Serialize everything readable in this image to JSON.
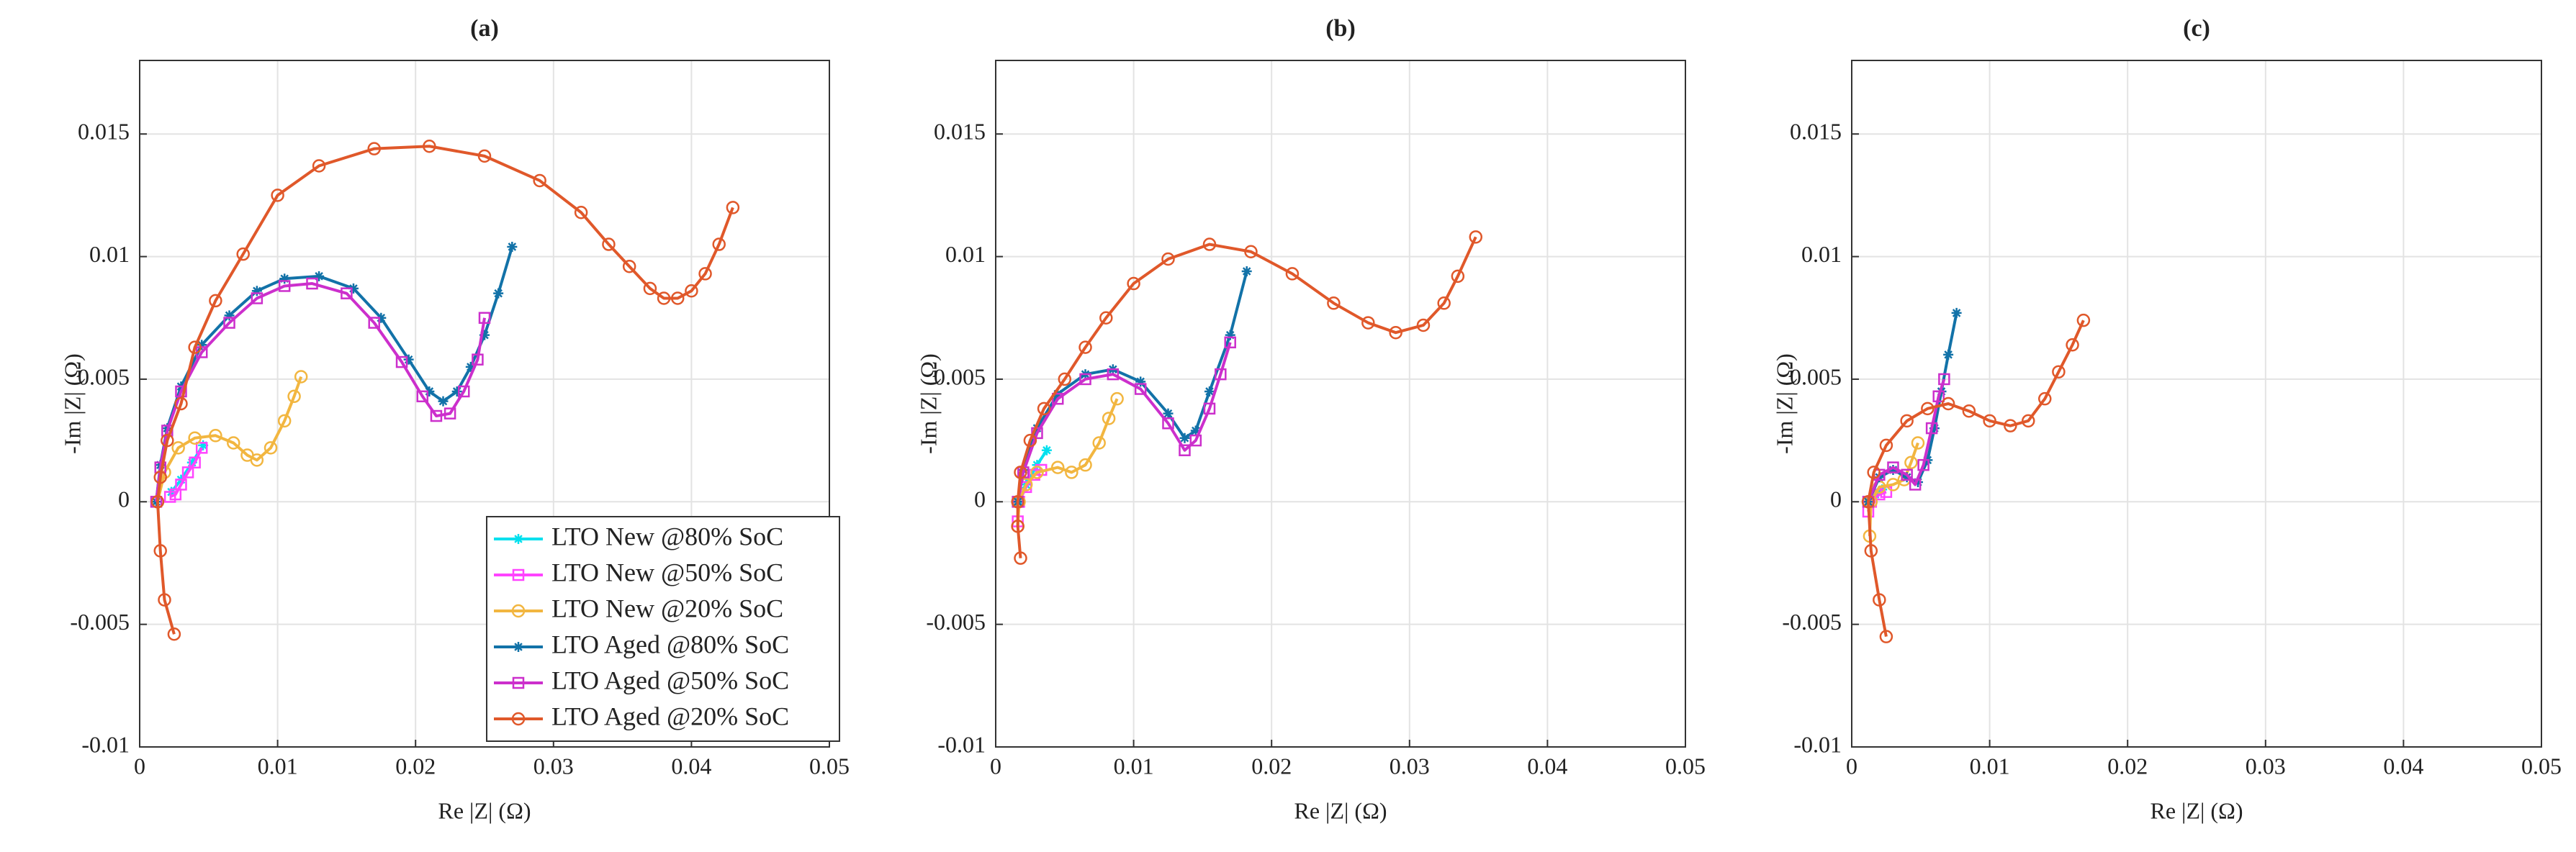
{
  "chart_data": [
    {
      "type": "line",
      "title": "(a)",
      "x_label": "Re |Z| (Ω)",
      "y_label": "-Im |Z| (Ω)",
      "xlim": [
        0,
        0.05
      ],
      "ylim": [
        -0.01,
        0.018
      ],
      "xticks": [
        0,
        0.01,
        0.02,
        0.03,
        0.04,
        0.05
      ],
      "yticks": [
        -0.01,
        -0.005,
        0,
        0.005,
        0.01,
        0.015
      ],
      "grid": true,
      "legend": "lower right",
      "series": [
        {
          "name": "LTO New @80% SoC",
          "color": "#00e0ee",
          "marker": "*",
          "x": [
            0.0023,
            0.003,
            0.0038,
            0.0046
          ],
          "values": [
            0.0004,
            0.0009,
            0.0016,
            0.0023
          ]
        },
        {
          "name": "LTO New @50% SoC",
          "color": "#ff44ff",
          "marker": "s",
          "x": [
            0.0022,
            0.0026,
            0.003,
            0.0035,
            0.004,
            0.0045
          ],
          "values": [
            0.0002,
            0.0003,
            0.0007,
            0.0012,
            0.0016,
            0.0022
          ]
        },
        {
          "name": "LTO New @20% SoC",
          "color": "#f2b640",
          "marker": "o",
          "x": [
            0.0013,
            0.0018,
            0.0028,
            0.004,
            0.0055,
            0.0068,
            0.0078,
            0.0085,
            0.0095,
            0.0105,
            0.0112,
            0.0117
          ],
          "values": [
            0,
            0.0012,
            0.0022,
            0.0026,
            0.0027,
            0.0024,
            0.0019,
            0.0017,
            0.0022,
            0.0033,
            0.0043,
            0.0051
          ]
        },
        {
          "name": "LTO Aged @80% SoC",
          "color": "#1272a8",
          "marker": "*",
          "x": [
            0.0012,
            0.0015,
            0.002,
            0.003,
            0.0045,
            0.0065,
            0.0085,
            0.0105,
            0.013,
            0.0155,
            0.0175,
            0.0195,
            0.021,
            0.022,
            0.023,
            0.024,
            0.025,
            0.026,
            0.027
          ],
          "values": [
            0,
            0.0015,
            0.003,
            0.0047,
            0.0064,
            0.0076,
            0.0086,
            0.0091,
            0.0092,
            0.0087,
            0.0075,
            0.0058,
            0.0045,
            0.0041,
            0.0045,
            0.0055,
            0.0068,
            0.0085,
            0.0104
          ]
        },
        {
          "name": "LTO Aged @50% SoC",
          "color": "#cc2fcc",
          "marker": "s",
          "x": [
            0.0012,
            0.0015,
            0.002,
            0.003,
            0.0045,
            0.0065,
            0.0085,
            0.0105,
            0.0125,
            0.015,
            0.017,
            0.019,
            0.0205,
            0.0215,
            0.0225,
            0.0235,
            0.0245,
            0.025
          ],
          "values": [
            0,
            0.0014,
            0.0029,
            0.0045,
            0.0061,
            0.0073,
            0.0083,
            0.0088,
            0.0089,
            0.0085,
            0.0073,
            0.0057,
            0.0043,
            0.0035,
            0.0036,
            0.0045,
            0.0058,
            0.0075
          ]
        },
        {
          "name": "LTO Aged @20% SoC",
          "color": "#e0582a",
          "marker": "o",
          "x": [
            0.0025,
            0.0018,
            0.0015,
            0.0013,
            0.0015,
            0.002,
            0.003,
            0.004,
            0.0055,
            0.0075,
            0.01,
            0.013,
            0.017,
            0.021,
            0.025,
            0.029,
            0.032,
            0.034,
            0.0355,
            0.037,
            0.038,
            0.039,
            0.04,
            0.041,
            0.042,
            0.043
          ],
          "values": [
            -0.0054,
            -0.004,
            -0.002,
            0,
            0.001,
            0.0025,
            0.004,
            0.0063,
            0.0082,
            0.0101,
            0.0125,
            0.0137,
            0.0144,
            0.0145,
            0.0141,
            0.0131,
            0.0118,
            0.0105,
            0.0096,
            0.0087,
            0.0083,
            0.0083,
            0.0086,
            0.0093,
            0.0105,
            0.012
          ]
        }
      ]
    },
    {
      "type": "line",
      "title": "(b)",
      "x_label": "Re |Z| (Ω)",
      "y_label": "-Im |Z| (Ω)",
      "xlim": [
        0,
        0.05
      ],
      "ylim": [
        -0.01,
        0.018
      ],
      "xticks": [
        0,
        0.01,
        0.02,
        0.03,
        0.04,
        0.05
      ],
      "yticks": [
        -0.01,
        -0.005,
        0,
        0.005,
        0.01,
        0.015
      ],
      "grid": true,
      "series": [
        {
          "color": "#00e0ee",
          "marker": "*",
          "x": [
            0.0017,
            0.0022,
            0.003,
            0.0037
          ],
          "values": [
            0,
            0.0007,
            0.0015,
            0.0021
          ]
        },
        {
          "color": "#ff44ff",
          "marker": "s",
          "x": [
            0.0016,
            0.0017,
            0.0022,
            0.0028,
            0.0033
          ],
          "values": [
            -0.0008,
            0,
            0.0006,
            0.0011,
            0.0013
          ]
        },
        {
          "color": "#f2b640",
          "marker": "o",
          "x": [
            0.0016,
            0.0017,
            0.0022,
            0.003,
            0.0045,
            0.0055,
            0.0065,
            0.0075,
            0.0082,
            0.0088
          ],
          "values": [
            -0.001,
            0,
            0.0007,
            0.0012,
            0.0014,
            0.0012,
            0.0015,
            0.0024,
            0.0034,
            0.0042
          ]
        },
        {
          "color": "#1272a8",
          "marker": "*",
          "x": [
            0.0016,
            0.002,
            0.003,
            0.0045,
            0.0065,
            0.0085,
            0.0105,
            0.0125,
            0.0137,
            0.0145,
            0.0155,
            0.017,
            0.0182
          ],
          "values": [
            0,
            0.0013,
            0.003,
            0.0044,
            0.0052,
            0.0054,
            0.0049,
            0.0036,
            0.0026,
            0.0029,
            0.0045,
            0.0068,
            0.0094
          ]
        },
        {
          "color": "#cc2fcc",
          "marker": "s",
          "x": [
            0.0016,
            0.002,
            0.003,
            0.0045,
            0.0065,
            0.0085,
            0.0105,
            0.0125,
            0.0137,
            0.0145,
            0.0155,
            0.0163,
            0.017
          ],
          "values": [
            0,
            0.0012,
            0.0028,
            0.0042,
            0.005,
            0.0052,
            0.0046,
            0.0032,
            0.0021,
            0.0025,
            0.0038,
            0.0052,
            0.0065
          ]
        },
        {
          "color": "#e0582a",
          "marker": "o",
          "x": [
            0.0018,
            0.0016,
            0.0016,
            0.0018,
            0.0025,
            0.0035,
            0.005,
            0.0065,
            0.008,
            0.01,
            0.0125,
            0.0155,
            0.0185,
            0.0215,
            0.0245,
            0.027,
            0.029,
            0.031,
            0.0325,
            0.0335,
            0.0348
          ],
          "values": [
            -0.0023,
            -0.001,
            0,
            0.0012,
            0.0025,
            0.0038,
            0.005,
            0.0063,
            0.0075,
            0.0089,
            0.0099,
            0.0105,
            0.0102,
            0.0093,
            0.0081,
            0.0073,
            0.0069,
            0.0072,
            0.0081,
            0.0092,
            0.0108
          ]
        }
      ]
    },
    {
      "type": "line",
      "title": "(c)",
      "x_label": "Re |Z| (Ω)",
      "y_label": "-Im |Z| (Ω)",
      "xlim": [
        0,
        0.05
      ],
      "ylim": [
        -0.01,
        0.018
      ],
      "xticks": [
        0,
        0.01,
        0.02,
        0.03,
        0.04,
        0.05
      ],
      "yticks": [
        -0.01,
        -0.005,
        0,
        0.005,
        0.01,
        0.015
      ],
      "grid": true,
      "series": [
        {
          "color": "#00e0ee",
          "marker": "*",
          "x": [
            0.0013,
            0.0017,
            0.0022
          ],
          "values": [
            0,
            0.0003,
            0.0005
          ]
        },
        {
          "color": "#ff44ff",
          "marker": "s",
          "x": [
            0.0012,
            0.0014,
            0.002,
            0.0025
          ],
          "values": [
            -0.0004,
            0,
            0.0003,
            0.0004
          ]
        },
        {
          "color": "#f2b640",
          "marker": "o",
          "x": [
            0.0013,
            0.0014,
            0.002,
            0.003,
            0.0038,
            0.0043,
            0.0048
          ],
          "values": [
            -0.0014,
            0,
            0.0006,
            0.0007,
            0.0009,
            0.0016,
            0.0024
          ]
        },
        {
          "color": "#1272a8",
          "marker": "*",
          "x": [
            0.0012,
            0.002,
            0.003,
            0.004,
            0.0048,
            0.0055,
            0.006,
            0.0065,
            0.007,
            0.0076
          ],
          "values": [
            0,
            0.001,
            0.0013,
            0.001,
            0.0008,
            0.0017,
            0.003,
            0.0045,
            0.006,
            0.0077
          ]
        },
        {
          "color": "#cc2fcc",
          "marker": "s",
          "x": [
            0.0012,
            0.002,
            0.003,
            0.004,
            0.0046,
            0.0052,
            0.0058,
            0.0063,
            0.0067
          ],
          "values": [
            0,
            0.0011,
            0.0014,
            0.0011,
            0.0007,
            0.0015,
            0.003,
            0.0043,
            0.005
          ]
        },
        {
          "color": "#e0582a",
          "marker": "o",
          "x": [
            0.0025,
            0.002,
            0.0014,
            0.0012,
            0.0016,
            0.0025,
            0.004,
            0.0055,
            0.007,
            0.0085,
            0.01,
            0.0115,
            0.0128,
            0.014,
            0.015,
            0.016,
            0.0168
          ],
          "values": [
            -0.0055,
            -0.004,
            -0.002,
            0,
            0.0012,
            0.0023,
            0.0033,
            0.0038,
            0.004,
            0.0037,
            0.0033,
            0.0031,
            0.0033,
            0.0042,
            0.0053,
            0.0064,
            0.0074
          ]
        }
      ]
    }
  ]
}
